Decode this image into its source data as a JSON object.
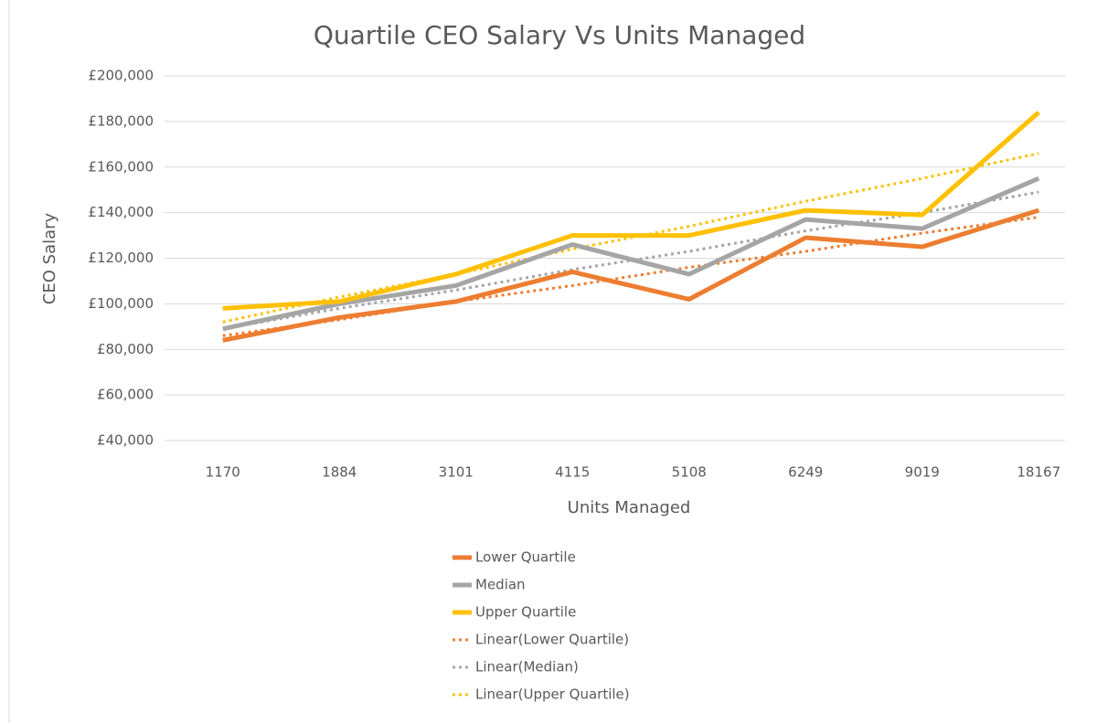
{
  "chart_data": {
    "type": "line",
    "title": "Quartile CEO Salary Vs Units Managed",
    "x_label": "Units Managed",
    "y_label": "CEO Salary",
    "categories": [
      "1170",
      "1884",
      "3101",
      "4115",
      "5108",
      "6249",
      "9019",
      "18167"
    ],
    "series": [
      {
        "name": "Lower Quartile",
        "color": "#ed7d31",
        "dashed": false,
        "values": [
          84000,
          94000,
          101000,
          114000,
          102000,
          129000,
          125000,
          141000
        ]
      },
      {
        "name": "Median",
        "color": "#a5a5a5",
        "dashed": false,
        "values": [
          89000,
          100000,
          108000,
          126000,
          113000,
          137000,
          133000,
          155000
        ]
      },
      {
        "name": "Upper Quartile",
        "color": "#ffc000",
        "dashed": false,
        "values": [
          98000,
          101000,
          113000,
          130000,
          130000,
          141000,
          139000,
          184000
        ]
      },
      {
        "name": "Linear(Lower Quartile)",
        "color": "#ed7d31",
        "dashed": true,
        "values": [
          86000,
          93000,
          101000,
          108000,
          116000,
          123000,
          131000,
          138000
        ]
      },
      {
        "name": "Linear(Median)",
        "color": "#a5a5a5",
        "dashed": true,
        "values": [
          89000,
          98000,
          106000,
          115000,
          123000,
          132000,
          140000,
          149000
        ]
      },
      {
        "name": "Linear(Upper Quartile)",
        "color": "#ffc000",
        "dashed": true,
        "values": [
          92000,
          103000,
          113000,
          124000,
          134000,
          145000,
          155000,
          166000
        ]
      }
    ],
    "ylim": [
      40000,
      200000
    ],
    "yticks": [
      {
        "value": 40000,
        "label": "£40,000"
      },
      {
        "value": 60000,
        "label": "£60,000"
      },
      {
        "value": 80000,
        "label": "£80,000"
      },
      {
        "value": 100000,
        "label": "£100,000"
      },
      {
        "value": 120000,
        "label": "£120,000"
      },
      {
        "value": 140000,
        "label": "£140,000"
      },
      {
        "value": 160000,
        "label": "£160,000"
      },
      {
        "value": 180000,
        "label": "£180,000"
      },
      {
        "value": 200000,
        "label": "£200,000"
      }
    ],
    "grid": true,
    "legend": "bottom"
  }
}
